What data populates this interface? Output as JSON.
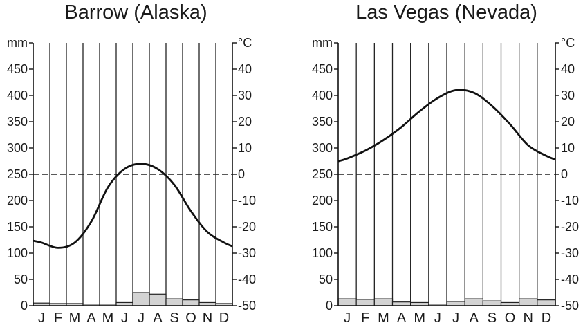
{
  "chart_data": [
    {
      "type": "bar",
      "title": "Barrow (Alaska)",
      "categories": [
        "J",
        "F",
        "M",
        "A",
        "M",
        "J",
        "J",
        "A",
        "S",
        "O",
        "N",
        "D"
      ],
      "left_axis": {
        "unit": "mm",
        "ticks": [
          0,
          50,
          100,
          150,
          200,
          250,
          300,
          350,
          400,
          450
        ],
        "ylim": [
          0,
          500
        ]
      },
      "right_axis": {
        "unit": "°C",
        "ticks": [
          -50,
          -40,
          -30,
          -20,
          -10,
          0,
          10,
          20,
          30,
          40
        ],
        "ylim": [
          -50,
          50
        ]
      },
      "series": [
        {
          "kind": "bar",
          "axis": "left",
          "values": [
            5,
            4,
            4,
            3,
            3,
            6,
            25,
            22,
            13,
            11,
            6,
            4
          ]
        },
        {
          "kind": "line",
          "axis": "right",
          "values": [
            -26,
            -28,
            -26,
            -18,
            -5,
            2,
            4,
            2,
            -4,
            -14,
            -22,
            -26
          ]
        }
      ],
      "zero_line": 0
    },
    {
      "type": "bar",
      "title": "Las Vegas (Nevada)",
      "categories": [
        "J",
        "F",
        "M",
        "A",
        "M",
        "J",
        "J",
        "A",
        "S",
        "O",
        "N",
        "D"
      ],
      "left_axis": {
        "unit": "mm",
        "ticks": [
          0,
          50,
          100,
          150,
          200,
          250,
          300,
          350,
          400,
          450
        ],
        "ylim": [
          0,
          500
        ]
      },
      "right_axis": {
        "unit": "°C",
        "ticks": [
          -50,
          -40,
          -30,
          -20,
          -10,
          0,
          10,
          20,
          30,
          40
        ],
        "ylim": [
          -50,
          50
        ]
      },
      "series": [
        {
          "kind": "bar",
          "axis": "left",
          "values": [
            13,
            12,
            13,
            7,
            6,
            3,
            8,
            13,
            9,
            6,
            13,
            11
          ]
        },
        {
          "kind": "line",
          "axis": "right",
          "values": [
            6,
            9,
            13,
            18,
            24,
            29,
            32,
            31,
            26,
            19,
            11,
            7
          ]
        }
      ],
      "zero_line": 0
    }
  ]
}
